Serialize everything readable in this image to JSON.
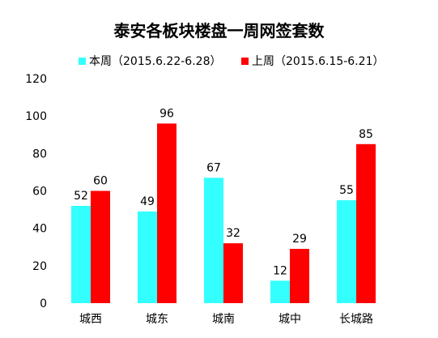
{
  "chart_data": {
    "type": "bar",
    "title": "泰安各板块楼盘一周网签套数",
    "categories": [
      "城西",
      "城东",
      "城南",
      "城中",
      "长城路"
    ],
    "series": [
      {
        "name": "本周（2015.6.22-6.28）",
        "color": "#33ffff",
        "values": [
          52,
          49,
          67,
          12,
          55
        ]
      },
      {
        "name": "上周（2015.6.15-6.21）",
        "color": "#ff0000",
        "values": [
          60,
          96,
          32,
          29,
          85
        ]
      }
    ],
    "yticks": [
      "0",
      "20",
      "40",
      "60",
      "80",
      "100",
      "120"
    ],
    "ylim": [
      0,
      120
    ],
    "grid": false,
    "legend_position": "top"
  }
}
